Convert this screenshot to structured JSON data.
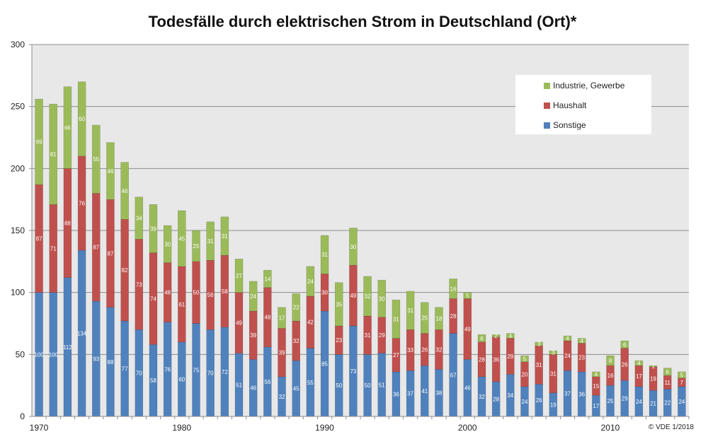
{
  "chart_data": {
    "type": "bar",
    "stacked": true,
    "title": "Todesfälle durch elektrischen Strom in Deutschland (Ort)*",
    "xlabel": "",
    "ylabel": "",
    "ylim": [
      0,
      300
    ],
    "yticks": [
      0,
      50,
      100,
      150,
      200,
      250,
      300
    ],
    "xtick_labels": [
      "1970",
      "1980",
      "1990",
      "2000",
      "2010"
    ],
    "grid": true,
    "legend_position": "top-right",
    "categories": [
      1970,
      1971,
      1972,
      1973,
      1974,
      1975,
      1976,
      1977,
      1978,
      1979,
      1980,
      1981,
      1982,
      1983,
      1984,
      1985,
      1986,
      1987,
      1988,
      1989,
      1990,
      1991,
      1992,
      1993,
      1994,
      1995,
      1996,
      1997,
      1998,
      1999,
      2000,
      2001,
      2002,
      2003,
      2004,
      2005,
      2006,
      2007,
      2008,
      2009,
      2010,
      2011,
      2012,
      2013,
      2014,
      2015
    ],
    "series": [
      {
        "name": "Sonstige",
        "color": "#4f81bd",
        "values": [
          100,
          100,
          112,
          134,
          93,
          88,
          77,
          70,
          58,
          76,
          60,
          75,
          70,
          72,
          51,
          46,
          56,
          32,
          45,
          55,
          85,
          50,
          73,
          50,
          51,
          36,
          37,
          41,
          38,
          67,
          46,
          32,
          28,
          34,
          24,
          26,
          19,
          37,
          36,
          17,
          25,
          29,
          24,
          21,
          22,
          24
        ]
      },
      {
        "name": "Haushalt",
        "color": "#c0504d",
        "values": [
          87,
          71,
          88,
          76,
          87,
          87,
          82,
          73,
          74,
          48,
          61,
          50,
          56,
          58,
          49,
          39,
          48,
          39,
          32,
          42,
          30,
          23,
          49,
          31,
          29,
          27,
          33,
          26,
          32,
          28,
          49,
          28,
          36,
          29,
          20,
          31,
          31,
          24,
          23,
          15,
          16,
          26,
          17,
          19,
          11,
          7
        ]
      },
      {
        "name": "Industrie, Gewerbe",
        "color": "#9bbb59",
        "values": [
          69,
          81,
          66,
          60,
          55,
          46,
          46,
          34,
          39,
          30,
          45,
          25,
          31,
          31,
          27,
          24,
          14,
          17,
          22,
          24,
          31,
          35,
          30,
          32,
          30,
          31,
          31,
          25,
          18,
          16,
          5,
          6,
          2,
          4,
          5,
          3,
          3,
          4,
          4,
          4,
          8,
          6,
          4,
          1,
          6,
          5
        ]
      }
    ],
    "legend_order": [
      "Industrie, Gewerbe",
      "Haushalt",
      "Sonstige"
    ]
  },
  "copyright": "© VDE 1/2018"
}
